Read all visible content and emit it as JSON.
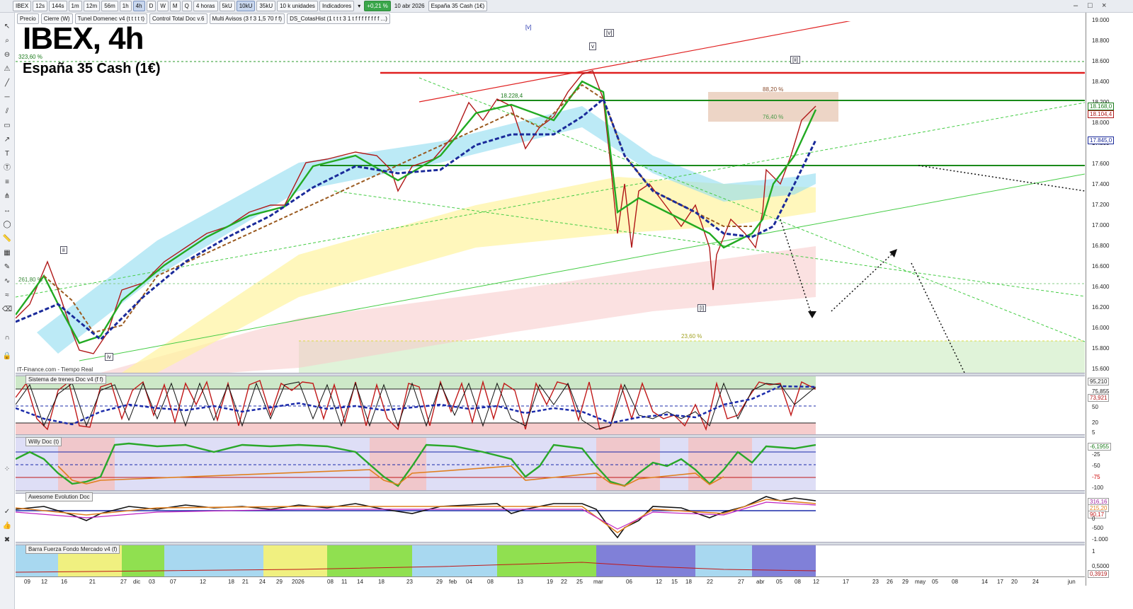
{
  "toolbar": {
    "symbol": "IBEX",
    "timeframes": [
      "12s",
      "144s",
      "1m",
      "12m",
      "56m",
      "1h",
      "4h",
      "D",
      "W",
      "M",
      "Q"
    ],
    "active_timeframe": "4h",
    "period": "4 horas",
    "bars_buttons": [
      "5kU",
      "10kU",
      "35kU"
    ],
    "active_bars": "10kU",
    "units": "10 k unidades",
    "indicators_label": "Indicadores",
    "change": "+0,21 %",
    "date": "10 abr 2026",
    "instrument": "España 35 Cash (1€)"
  },
  "legend_chips": [
    "Precio",
    "Cierre (W)",
    "Tunel Domenec v4 (t t t t t)",
    "Control Total Doc v.6",
    "Multi Avisos (3 f 3 1,5 70 f f)",
    "DS_CotasHist (1 t t t 3 1 t f f f f f f f f ...)"
  ],
  "chart": {
    "title": "IBEX, 4h",
    "subtitle": "España 35 Cash (1€)",
    "source": "IT-Finance.com - Tiempo Real",
    "fib_labels": [
      "323,60 %",
      "261,80 %",
      "88,20 %",
      "76,40 %",
      "23,60 %",
      "18.228,4"
    ],
    "wave_labels": [
      "[v]",
      "v",
      "[v]",
      "ii",
      "iv",
      "[i]",
      "[ii]"
    ],
    "price_ticks": [
      "19.000",
      "18.800",
      "18.600",
      "18.400",
      "18.200",
      "18.000",
      "17.800",
      "17.600",
      "17.400",
      "17.200",
      "17.000",
      "16.800",
      "16.600",
      "16.400",
      "16.200",
      "16.000",
      "15.800",
      "15.600"
    ],
    "price_tags": [
      "18.168,0",
      "18.104,4",
      "17.845,0"
    ],
    "colors": {
      "resistance": "#e02020",
      "support": "#1a8a1a",
      "blue_ma": "#1a2a9a",
      "cyan_band": "#8fdcf0",
      "yellow_band": "#fff3a0",
      "pink_band": "#f8c8c8",
      "green_zone": "#d8f0d0",
      "fib_box": "#e8cbb8"
    }
  },
  "panes": [
    {
      "title": "Sistema de trenes Doc v4 (f f)",
      "scale": [
        "95,210",
        "73,921",
        "75,855",
        "50",
        "20"
      ],
      "scale_extra": "5"
    },
    {
      "title": "Willy Doc (t)",
      "scale": [
        "-6,1955",
        "-25",
        "-50",
        "-75",
        "-100"
      ],
      "scale_extra": ""
    },
    {
      "title": "Awesome Evolution Doc",
      "scale": [
        "316,16",
        "215,20",
        "90,17",
        "0",
        "-500",
        "-1.000"
      ],
      "scale_extra": ""
    },
    {
      "title": "Barra Fuerza Fondo Mercado v4 (f)",
      "scale": [
        "1",
        "0,5000",
        "0,3919"
      ],
      "scale_extra": ""
    }
  ],
  "xaxis": [
    "09",
    "12",
    "16",
    "21",
    "27",
    "dic",
    "03",
    "07",
    "12",
    "18",
    "21",
    "24",
    "29",
    "2026",
    "08",
    "11",
    "14",
    "18",
    "23",
    "29",
    "feb",
    "04",
    "08",
    "13",
    "19",
    "22",
    "25",
    "mar",
    "06",
    "12",
    "15",
    "18",
    "22",
    "27",
    "abr",
    "05",
    "08",
    "12",
    "17",
    "23",
    "26",
    "29",
    "may",
    "05",
    "08",
    "14",
    "17",
    "20",
    "24",
    "jun"
  ]
}
